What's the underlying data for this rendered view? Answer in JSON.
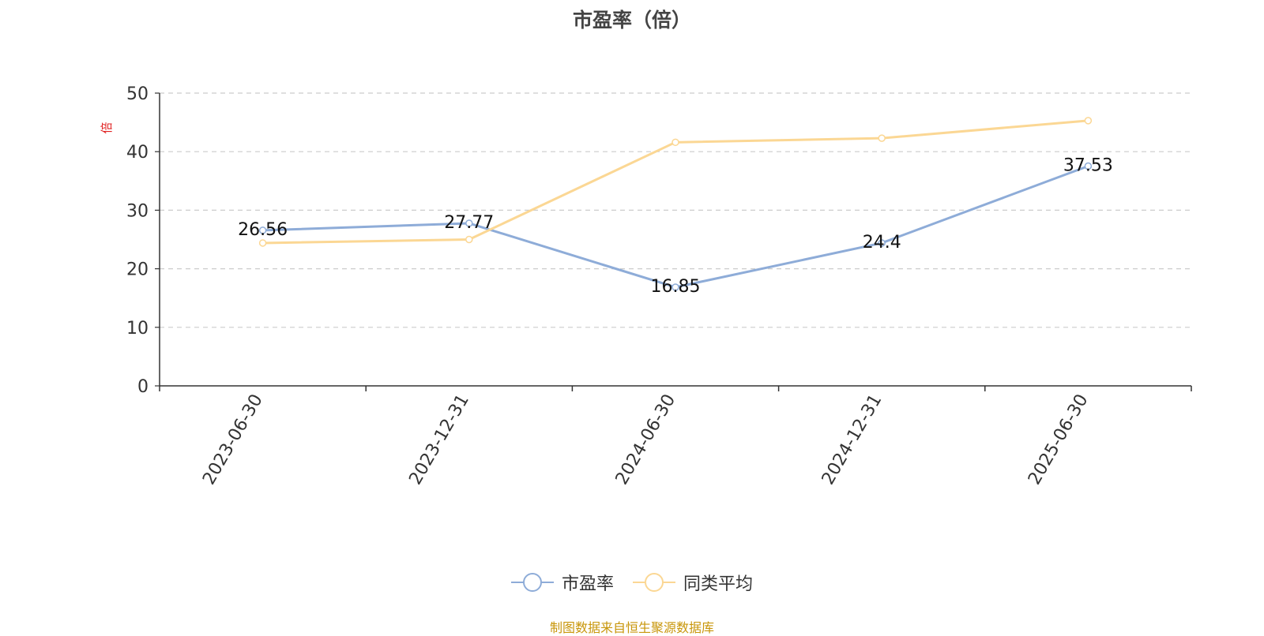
{
  "chart_data": {
    "type": "line",
    "title": "市盈率（倍）",
    "ylabel": "倍",
    "categories": [
      "2023-06-30",
      "2023-12-31",
      "2024-06-30",
      "2024-12-31",
      "2025-06-30"
    ],
    "yticks": [
      "0",
      "10",
      "20",
      "30",
      "40",
      "50"
    ],
    "ylim": [
      0,
      50
    ],
    "grid": true,
    "legend_position": "bottom",
    "series": [
      {
        "name": "市盈率",
        "values": [
          26.56,
          27.77,
          16.85,
          24.4,
          37.53
        ],
        "color": "#8eacd8",
        "show_labels": true
      },
      {
        "name": "同类平均",
        "values": [
          24.4,
          25.0,
          41.6,
          42.3,
          45.3
        ],
        "color": "#fbd794",
        "show_labels": false
      }
    ]
  },
  "legend": [
    {
      "label": "市盈率",
      "color": "#8eacd8"
    },
    {
      "label": "同类平均",
      "color": "#fbd794"
    }
  ],
  "source_note": "制图数据来自恒生聚源数据库"
}
